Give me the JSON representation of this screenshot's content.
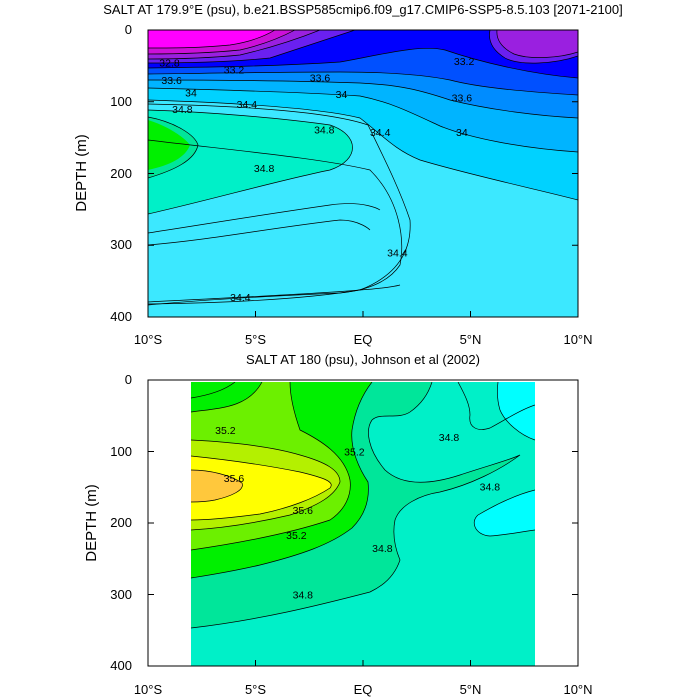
{
  "chart_data": [
    {
      "type": "contour",
      "title": "SALT AT 179.9°E (psu), b.e21.BSSP585cmip6.f09_g17.CMIP6-SSP5-8.5.103 [2071-2100]",
      "ylabel": "DEPTH (m)",
      "xlabel": "",
      "x_ticks": [
        "10°S",
        "5°S",
        "EQ",
        "5°N",
        "10°N"
      ],
      "x_tick_values": [
        -10,
        -5,
        0,
        5,
        10
      ],
      "y_ticks": [
        "0",
        "100",
        "200",
        "300",
        "400"
      ],
      "y_tick_values": [
        0,
        100,
        200,
        300,
        400
      ],
      "xlim": [
        -10,
        10
      ],
      "ylim": [
        400,
        0
      ],
      "contour_labels": [
        {
          "text": "32.8",
          "lat": -9.0,
          "depth": 45
        },
        {
          "text": "33.2",
          "lat": -6.0,
          "depth": 55
        },
        {
          "text": "33.6",
          "lat": -8.9,
          "depth": 70
        },
        {
          "text": "34",
          "lat": -8.0,
          "depth": 87
        },
        {
          "text": "34.8",
          "lat": -8.4,
          "depth": 110
        },
        {
          "text": "34.4",
          "lat": -5.4,
          "depth": 103
        },
        {
          "text": "33.6",
          "lat": -2.0,
          "depth": 66
        },
        {
          "text": "34",
          "lat": -1.0,
          "depth": 89
        },
        {
          "text": "34.8",
          "lat": -1.8,
          "depth": 139
        },
        {
          "text": "34.4",
          "lat": 0.8,
          "depth": 142
        },
        {
          "text": "34.8",
          "lat": -4.6,
          "depth": 192
        },
        {
          "text": "34.4",
          "lat": 1.6,
          "depth": 310
        },
        {
          "text": "34.4",
          "lat": -5.7,
          "depth": 372
        },
        {
          "text": "33.2",
          "lat": 4.7,
          "depth": 43
        },
        {
          "text": "33.6",
          "lat": 4.6,
          "depth": 94
        },
        {
          "text": "34",
          "lat": 4.6,
          "depth": 142
        }
      ],
      "color_levels": [
        {
          "range": "<32.8",
          "color": "#FF00FF"
        },
        {
          "range": "32.8-33.0",
          "color": "#CC10D8"
        },
        {
          "range": "33.0-33.2",
          "color": "#9A20E0"
        },
        {
          "range": "33.2-33.4",
          "color": "#6A20F0"
        },
        {
          "range": "33.4-33.6",
          "color": "#0000FF"
        },
        {
          "range": "33.6-33.8",
          "color": "#0050FF"
        },
        {
          "range": "33.8-34.0",
          "color": "#008CFF"
        },
        {
          "range": "34.0-34.2",
          "color": "#00B4FF"
        },
        {
          "range": "34.2-34.4",
          "color": "#00D2FF"
        },
        {
          "range": "34.4-34.6",
          "color": "#3CE8FF"
        },
        {
          "range": "34.6-34.8",
          "color": "#00F0C8"
        },
        {
          "range": "34.8-35.0",
          "color": "#00E69A"
        },
        {
          "range": "35.0-35.2",
          "color": "#00F000"
        }
      ]
    },
    {
      "type": "contour",
      "title": "SALT AT 180 (psu), Johnson et al (2002)",
      "ylabel": "DEPTH (m)",
      "xlabel": "",
      "x_ticks": [
        "10°S",
        "5°S",
        "EQ",
        "5°N",
        "10°N"
      ],
      "x_tick_values": [
        -10,
        -5,
        0,
        5,
        10
      ],
      "y_ticks": [
        "0",
        "100",
        "200",
        "300",
        "400"
      ],
      "y_tick_values": [
        0,
        100,
        200,
        300,
        400
      ],
      "xlim": [
        -10,
        10
      ],
      "ylim": [
        400,
        0
      ],
      "data_extent": {
        "lat": [
          -8,
          8
        ],
        "depth": [
          5,
          400
        ]
      },
      "contour_labels": [
        {
          "text": "35.2",
          "lat": -6.4,
          "depth": 70
        },
        {
          "text": "35.2",
          "lat": -0.4,
          "depth": 100
        },
        {
          "text": "34.8",
          "lat": 4.0,
          "depth": 80
        },
        {
          "text": "35.6",
          "lat": -6.0,
          "depth": 137
        },
        {
          "text": "34.8",
          "lat": 5.9,
          "depth": 149
        },
        {
          "text": "35.6",
          "lat": -2.8,
          "depth": 182
        },
        {
          "text": "35.2",
          "lat": -3.1,
          "depth": 217
        },
        {
          "text": "34.8",
          "lat": 0.9,
          "depth": 235
        },
        {
          "text": "34.8",
          "lat": -2.8,
          "depth": 300
        }
      ],
      "color_levels": [
        {
          "range": "34.6-34.8",
          "color": "#00F0C8"
        },
        {
          "range": "34.8-35.0",
          "color": "#00E69A"
        },
        {
          "range": "35.0-35.2",
          "color": "#00F000"
        },
        {
          "range": "35.2-35.4",
          "color": "#6CF000"
        },
        {
          "range": "35.4-35.6",
          "color": "#B4F000"
        },
        {
          "range": "35.6-35.8",
          "color": "#FFFF00"
        },
        {
          "range": "35.8-36.0",
          "color": "#FFC83C"
        }
      ]
    }
  ]
}
